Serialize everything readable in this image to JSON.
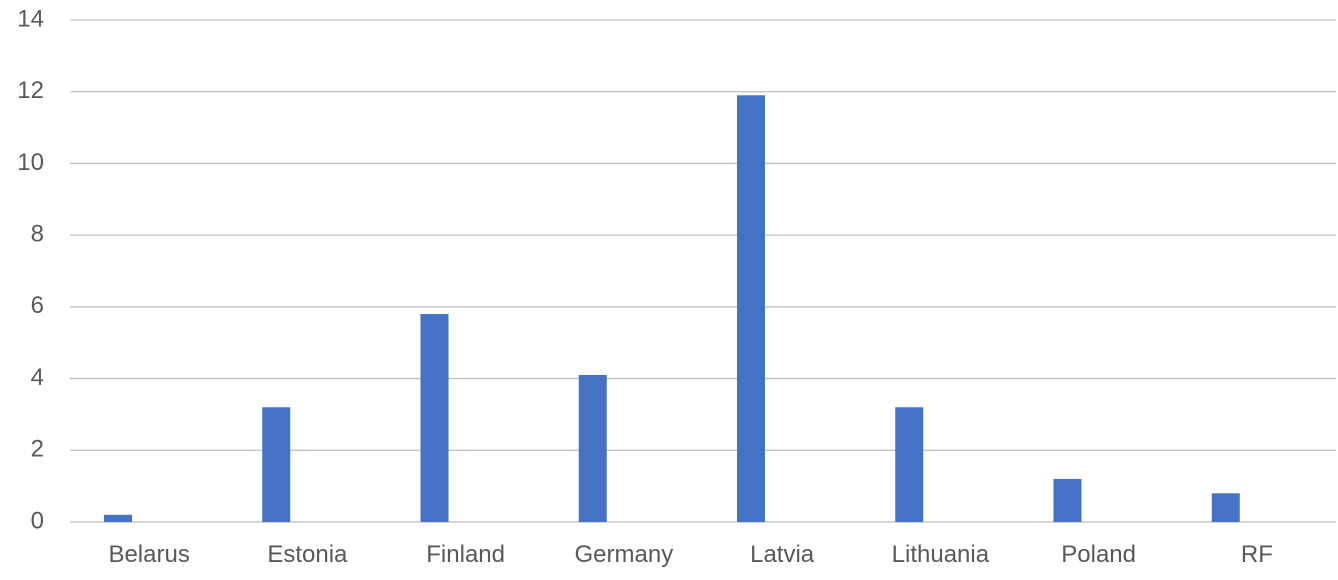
{
  "chart_data": {
    "type": "bar",
    "categories": [
      "Belarus",
      "Estonia",
      "Finland",
      "Germany",
      "Latvia",
      "Lithuania",
      "Poland",
      "RF"
    ],
    "values": [
      0.2,
      3.2,
      5.8,
      4.1,
      11.9,
      3.2,
      1.2,
      0.8
    ],
    "ylim": [
      0,
      14
    ],
    "yticks": [
      "0",
      "2",
      "4",
      "6",
      "8",
      "10",
      "12",
      "14"
    ],
    "ytick_values": [
      0,
      2,
      4,
      6,
      8,
      10,
      12,
      14
    ],
    "grid": true,
    "legend": "none",
    "colors": {
      "bar": "#4472c4",
      "grid": "#bfbfbf",
      "text": "#595959"
    }
  }
}
